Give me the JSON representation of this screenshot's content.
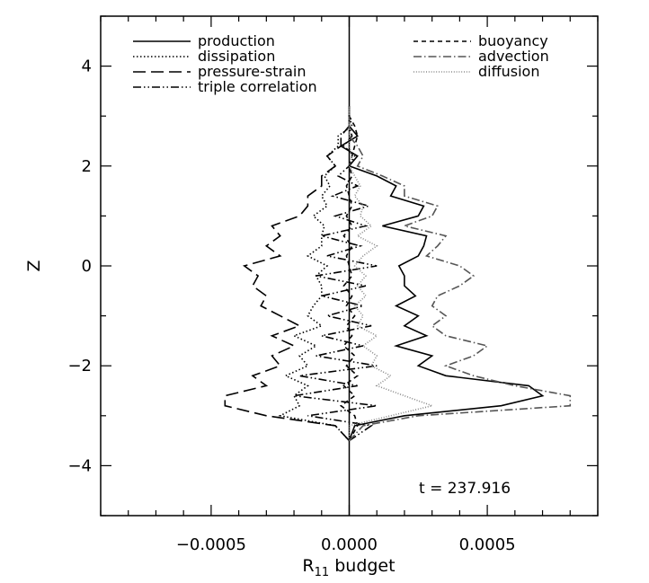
{
  "chart_data": {
    "type": "line",
    "title": "",
    "xlabel_main": "R",
    "xlabel_sub": "11",
    "xlabel_rest": " budget",
    "ylabel": "Z",
    "annotation": "t = 237.916",
    "xlim": [
      -0.0009,
      0.0009
    ],
    "ylim": [
      -5,
      5
    ],
    "x_ticks": [
      -0.0005,
      0.0,
      0.0005
    ],
    "x_tick_labels": [
      "−0.0005",
      "0.0000",
      "0.0005"
    ],
    "y_ticks": [
      -4,
      -2,
      0,
      2,
      4
    ],
    "y_tick_labels": [
      "−4",
      "−2",
      "0",
      "2",
      "4"
    ],
    "grid": false,
    "legend_placement": "top",
    "z": [
      -3.5,
      -3.2,
      -3.0,
      -2.8,
      -2.6,
      -2.4,
      -2.2,
      -2.0,
      -1.8,
      -1.6,
      -1.4,
      -1.2,
      -1.0,
      -0.8,
      -0.6,
      -0.4,
      -0.2,
      0.0,
      0.2,
      0.4,
      0.6,
      0.8,
      1.0,
      1.2,
      1.4,
      1.6,
      1.8,
      2.0,
      2.2,
      2.4,
      2.6,
      2.8,
      3.0,
      3.2
    ],
    "series": [
      {
        "name": "production",
        "dash": "solid",
        "color": "#000000",
        "values": [
          0.0,
          2e-05,
          0.0002,
          0.00055,
          0.0007,
          0.00065,
          0.00035,
          0.00025,
          0.0003,
          0.00017,
          0.00028,
          0.0002,
          0.00025,
          0.00017,
          0.00024,
          0.0002,
          0.0002,
          0.00018,
          0.00025,
          0.00027,
          0.00028,
          0.00012,
          0.00025,
          0.00027,
          0.00015,
          0.00017,
          0.0001,
          0.0,
          3e-05,
          -3e-05,
          3e-05,
          0.0,
          0.0,
          0.0
        ]
      },
      {
        "name": "dissipation",
        "dash": "dotted",
        "color": "#000000",
        "values": [
          0.0,
          -5e-05,
          -0.00025,
          -0.00018,
          -0.0002,
          -0.00015,
          -0.00023,
          -0.00015,
          -0.00018,
          -0.00012,
          -0.0002,
          -0.0001,
          -0.00015,
          -0.00013,
          -0.0001,
          -0.0001,
          -0.00012,
          -8e-05,
          -0.00015,
          -0.0001,
          -0.0001,
          -9e-05,
          -0.00013,
          -8e-05,
          -0.0001,
          -7e-05,
          -9e-05,
          -5e-05,
          -8e-05,
          -4e-05,
          -4e-05,
          1e-05,
          0.0,
          0.0
        ]
      },
      {
        "name": "pressure-strain",
        "dash": "long-dash",
        "color": "#000000",
        "values": [
          0.0,
          -5e-05,
          -0.0003,
          -0.00045,
          -0.00045,
          -0.0003,
          -0.00035,
          -0.00025,
          -0.00028,
          -0.0002,
          -0.00028,
          -0.00018,
          -0.00025,
          -0.00032,
          -0.0003,
          -0.00035,
          -0.00033,
          -0.00038,
          -0.00025,
          -0.0003,
          -0.00025,
          -0.00028,
          -0.00018,
          -0.00015,
          -0.00015,
          -0.0001,
          -0.0001,
          -5e-05,
          -8e-05,
          -3e-05,
          -3e-05,
          0.0,
          0.0,
          0.0
        ]
      },
      {
        "name": "triple correlation",
        "dash": "dash-dot-dot",
        "color": "#000000",
        "values": [
          0.0,
          8e-05,
          -0.00015,
          0.0001,
          -0.0002,
          3e-05,
          -0.00018,
          0.0001,
          -0.00012,
          5e-05,
          -0.0001,
          8e-05,
          -8e-05,
          5e-05,
          -0.0001,
          6e-05,
          -0.00012,
          0.0001,
          -8e-05,
          4e-05,
          -0.0001,
          6e-05,
          -5e-05,
          7e-05,
          -6e-05,
          3e-05,
          -4e-05,
          0.0,
          2e-05,
          -2e-05,
          1e-05,
          0.0,
          0.0,
          0.0
        ]
      },
      {
        "name": "buoyancy",
        "dash": "short-dash",
        "color": "#000000",
        "values": [
          0.0,
          3e-05,
          2e-05,
          -3e-05,
          2e-05,
          -2e-05,
          3e-05,
          -1e-05,
          2e-05,
          -2e-05,
          1e-05,
          -1e-05,
          2e-05,
          -1e-05,
          1e-05,
          -2e-05,
          1e-05,
          0.0,
          -1e-05,
          1e-05,
          -2e-05,
          1e-05,
          -1e-05,
          1e-05,
          0.0,
          -1e-05,
          1e-05,
          0.0,
          1e-05,
          2e-05,
          3e-05,
          2e-05,
          0.0,
          0.0
        ]
      },
      {
        "name": "advection",
        "dash": "dash-dot",
        "color": "#555555",
        "values": [
          0.0,
          5e-05,
          0.00025,
          0.0008,
          0.0008,
          0.0006,
          0.00045,
          0.00035,
          0.00045,
          0.0005,
          0.00035,
          0.0003,
          0.00035,
          0.0003,
          0.00032,
          0.0004,
          0.00045,
          0.0004,
          0.00028,
          0.00032,
          0.00035,
          0.0002,
          0.0003,
          0.00032,
          0.0002,
          0.0002,
          0.00012,
          3e-05,
          5e-05,
          3e-05,
          0.0,
          0.0,
          0.0,
          0.0
        ]
      },
      {
        "name": "diffusion",
        "dash": "fine-dotted",
        "color": "#888888",
        "values": [
          0.0,
          0.0,
          0.00015,
          0.0003,
          0.0002,
          0.0001,
          0.00015,
          8e-05,
          0.0001,
          5e-05,
          0.0001,
          3e-05,
          5e-05,
          2e-05,
          6e-05,
          3e-05,
          6e-05,
          2e-05,
          5e-05,
          0.0001,
          3e-05,
          8e-05,
          4e-05,
          5e-05,
          2e-05,
          4e-05,
          2e-05,
          0.0,
          1e-05,
          0.0,
          0.0,
          0.0,
          0.0,
          0.0
        ]
      }
    ]
  }
}
